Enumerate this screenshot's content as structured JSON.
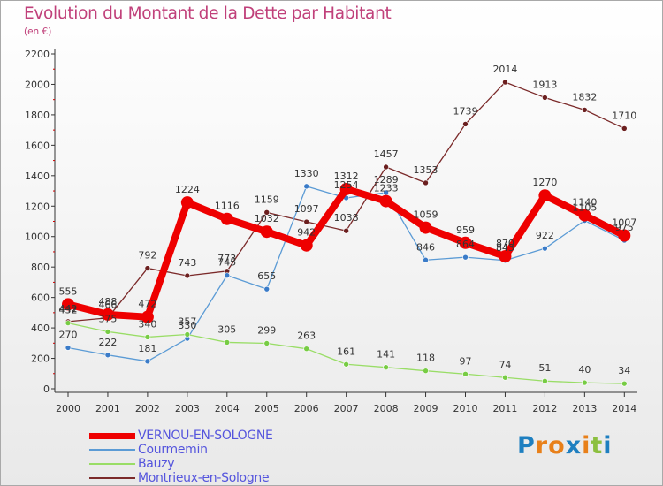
{
  "title": "Evolution du Montant de la Dette par Habitant",
  "subtitle": "(en €)",
  "logo": {
    "text": "Proxiti",
    "letters": [
      "P",
      "r",
      "o",
      "x",
      "i",
      "t",
      "i"
    ],
    "colors": [
      "#1e7fc0",
      "#e8801a",
      "#e8801a",
      "#1e7fc0",
      "#e8801a",
      "#8cbf3f",
      "#1e7fc0"
    ]
  },
  "chart_data": {
    "type": "line",
    "categories": [
      "2000",
      "2001",
      "2002",
      "2003",
      "2004",
      "2005",
      "2006",
      "2007",
      "2008",
      "2009",
      "2010",
      "2011",
      "2012",
      "2013",
      "2014"
    ],
    "ylim": [
      0,
      2200
    ],
    "yticks": [
      0,
      200,
      400,
      600,
      800,
      1000,
      1200,
      1400,
      1600,
      1800,
      2000,
      2200
    ],
    "grid": false,
    "legend_position": "bottom-left",
    "series": [
      {
        "name": "Montrieux-en-Sologne",
        "color": "#7b2a2a",
        "marker": "#6b1f1f",
        "values": [
          442,
          466,
          792,
          743,
          773,
          1159,
          1097,
          1038,
          1457,
          1353,
          1739,
          2014,
          1913,
          1832,
          1710
        ]
      },
      {
        "name": "Courmemin",
        "color": "#5b9bd5",
        "marker": "#3a7bc8",
        "values": [
          270,
          222,
          181,
          330,
          745,
          655,
          1330,
          1254,
          1289,
          846,
          864,
          843,
          922,
          1105,
          975
        ]
      },
      {
        "name": "Bauzy",
        "color": "#99dd66",
        "marker": "#77cc44",
        "values": [
          432,
          375,
          340,
          357,
          305,
          299,
          263,
          161,
          141,
          118,
          97,
          74,
          51,
          40,
          34
        ]
      },
      {
        "name": "VERNOU-EN-SOLOGNE",
        "color": "#ee0000",
        "marker": "#ee0000",
        "values": [
          555,
          488,
          472,
          1224,
          1116,
          1032,
          942,
          1312,
          1233,
          1059,
          959,
          870,
          1270,
          1140,
          1007
        ]
      }
    ],
    "labels": {
      "Montrieux-en-Sologne": [
        "442",
        "466",
        "792",
        "743",
        "773",
        "1159",
        "1097",
        "1038",
        "1457",
        "1353",
        "1739",
        "2014",
        "1913",
        "1832",
        "1710"
      ],
      "Courmemin": [
        "270",
        "222",
        "181",
        "330",
        "745",
        "655",
        "1330",
        "1254",
        "1289",
        "846",
        "864",
        "843",
        "922",
        "1105",
        "975"
      ],
      "Bauzy": [
        "432",
        "375",
        "340",
        "357",
        "305",
        "299",
        "263",
        "161",
        "141",
        "118",
        "97",
        "74",
        "51",
        "40",
        "34"
      ],
      "VERNOU-EN-SOLOGNE": [
        "555",
        "488",
        "472",
        "1224",
        "1116",
        "1032",
        "942",
        "1312",
        "1233",
        "1059",
        "959",
        "870",
        "1270",
        "1140",
        "1007"
      ]
    }
  },
  "legend": [
    {
      "label": "VERNOU-EN-SOLOGNE",
      "color": "#ee0000",
      "thick": true
    },
    {
      "label": "Courmemin",
      "color": "#5b9bd5",
      "thick": false
    },
    {
      "label": "Bauzy",
      "color": "#99dd66",
      "thick": false
    },
    {
      "label": "Montrieux-en-Sologne",
      "color": "#7b2a2a",
      "thick": false
    }
  ]
}
